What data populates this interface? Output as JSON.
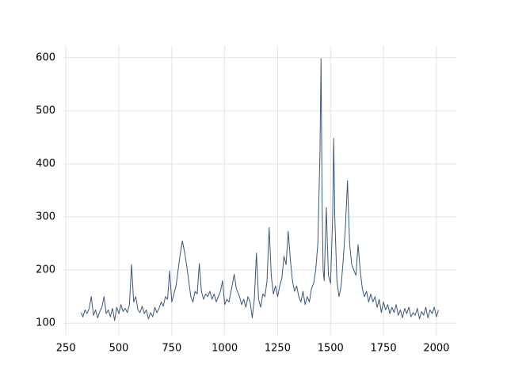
{
  "chart_data": {
    "type": "line",
    "x": [
      322,
      330,
      340,
      350,
      360,
      370,
      380,
      390,
      400,
      410,
      420,
      430,
      440,
      450,
      460,
      470,
      480,
      490,
      500,
      510,
      520,
      530,
      540,
      550,
      560,
      570,
      580,
      590,
      600,
      610,
      620,
      630,
      640,
      650,
      660,
      670,
      680,
      690,
      700,
      710,
      720,
      730,
      740,
      750,
      760,
      770,
      780,
      790,
      800,
      810,
      820,
      830,
      840,
      850,
      860,
      870,
      880,
      890,
      900,
      910,
      920,
      930,
      940,
      950,
      960,
      970,
      980,
      990,
      1000,
      1010,
      1020,
      1030,
      1045,
      1055,
      1070,
      1080,
      1090,
      1100,
      1110,
      1120,
      1130,
      1140,
      1150,
      1160,
      1170,
      1180,
      1190,
      1200,
      1210,
      1220,
      1230,
      1240,
      1250,
      1260,
      1270,
      1280,
      1290,
      1300,
      1310,
      1320,
      1330,
      1340,
      1350,
      1360,
      1370,
      1380,
      1390,
      1400,
      1410,
      1420,
      1430,
      1440,
      1450,
      1455,
      1460,
      1465,
      1470,
      1480,
      1485,
      1490,
      1500,
      1510,
      1515,
      1520,
      1530,
      1540,
      1550,
      1560,
      1570,
      1580,
      1590,
      1600,
      1610,
      1620,
      1630,
      1640,
      1650,
      1660,
      1670,
      1680,
      1690,
      1700,
      1710,
      1720,
      1730,
      1740,
      1750,
      1760,
      1770,
      1780,
      1790,
      1800,
      1810,
      1820,
      1830,
      1840,
      1850,
      1860,
      1870,
      1880,
      1890,
      1900,
      1910,
      1920,
      1930,
      1940,
      1950,
      1960,
      1970,
      1980,
      1990,
      2000,
      2010
    ],
    "series": [
      {
        "color": "#3b5878",
        "values": [
          120,
          112,
          125,
          118,
          128,
          150,
          115,
          125,
          110,
          122,
          130,
          150,
          118,
          125,
          112,
          128,
          105,
          130,
          118,
          135,
          122,
          128,
          120,
          135,
          210,
          140,
          150,
          125,
          120,
          132,
          118,
          125,
          108,
          120,
          112,
          130,
          120,
          128,
          140,
          132,
          150,
          145,
          198,
          140,
          155,
          170,
          200,
          230,
          255,
          235,
          210,
          180,
          150,
          140,
          160,
          155,
          212,
          160,
          145,
          155,
          150,
          160,
          145,
          155,
          140,
          150,
          160,
          180,
          135,
          145,
          140,
          160,
          192,
          165,
          150,
          135,
          145,
          130,
          150,
          140,
          110,
          145,
          232,
          145,
          130,
          155,
          150,
          180,
          280,
          190,
          155,
          170,
          150,
          170,
          185,
          226,
          210,
          273,
          220,
          180,
          160,
          170,
          150,
          140,
          160,
          135,
          150,
          140,
          165,
          175,
          200,
          250,
          420,
          598,
          330,
          200,
          180,
          318,
          250,
          190,
          175,
          300,
          448,
          300,
          180,
          150,
          170,
          220,
          280,
          368,
          250,
          210,
          200,
          190,
          248,
          200,
          165,
          150,
          160,
          140,
          155,
          140,
          150,
          130,
          145,
          120,
          140,
          125,
          135,
          118,
          130,
          120,
          135,
          115,
          125,
          110,
          128,
          118,
          130,
          112,
          120,
          115,
          128,
          108,
          122,
          115,
          130,
          110,
          125,
          118,
          130,
          112,
          125
        ]
      }
    ],
    "xlim": [
      238,
      2094
    ],
    "ylim": [
      78,
      622
    ],
    "xticks": [
      250,
      500,
      750,
      1000,
      1250,
      1500,
      1750,
      2000
    ],
    "yticks": [
      100,
      200,
      300,
      400,
      500,
      600
    ],
    "grid": true
  }
}
